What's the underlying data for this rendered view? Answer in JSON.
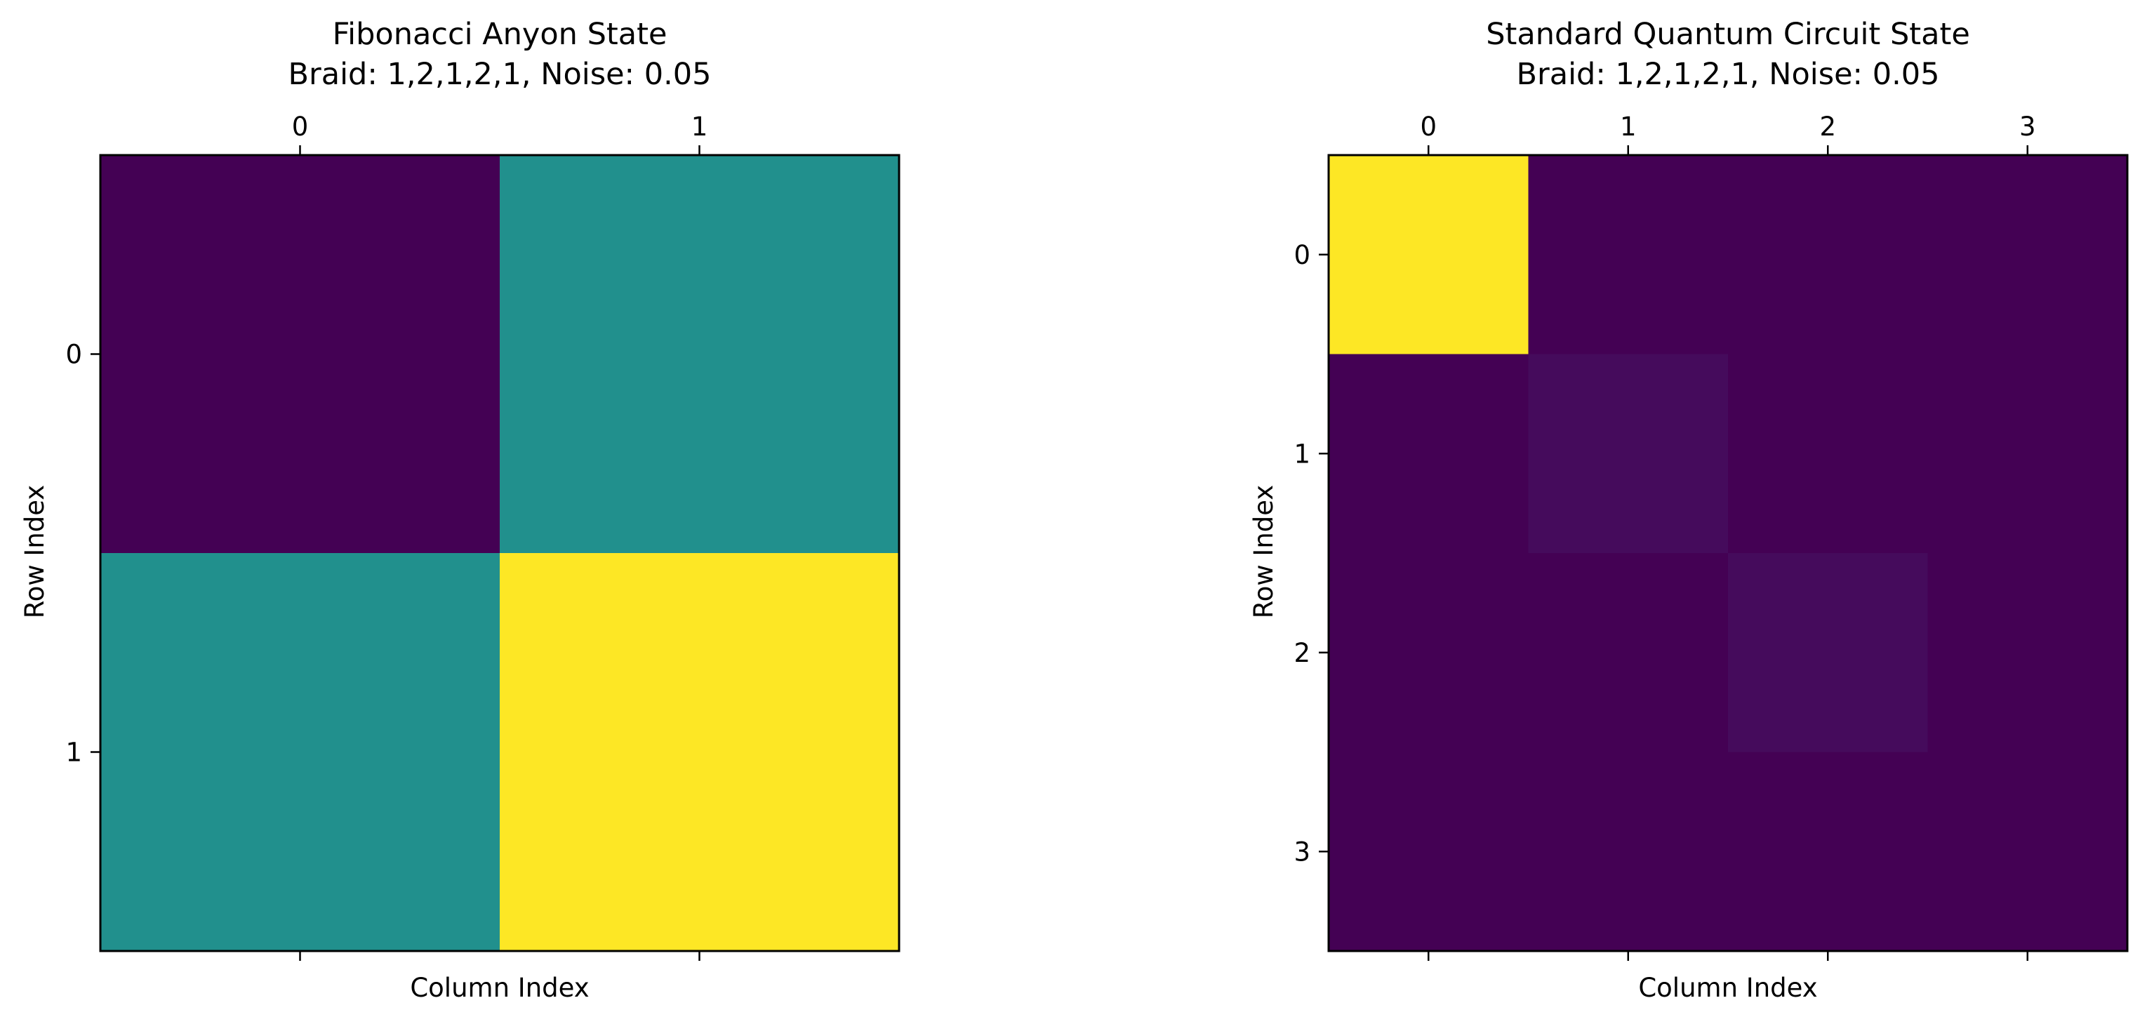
{
  "colormap": "viridis",
  "chart_data": [
    {
      "type": "heatmap",
      "title": "Fibonacci Anyon State",
      "subtitle": "Braid: 1,2,1,2,1, Noise: 0.05",
      "xlabel": "Column Index",
      "ylabel": "Row Index",
      "x_ticks": [
        "0",
        "1"
      ],
      "y_ticks": [
        "0",
        "1"
      ],
      "x_tick_position": "top",
      "grid": false,
      "legend": "none",
      "values": [
        [
          0.0,
          0.5
        ],
        [
          0.5,
          1.0
        ]
      ]
    },
    {
      "type": "heatmap",
      "title": "Standard Quantum Circuit State",
      "subtitle": "Braid: 1,2,1,2,1, Noise: 0.05",
      "xlabel": "Column Index",
      "ylabel": "Row Index",
      "x_ticks": [
        "0",
        "1",
        "2",
        "3"
      ],
      "y_ticks": [
        "0",
        "1",
        "2",
        "3"
      ],
      "x_tick_position": "top",
      "grid": false,
      "legend": "none",
      "values": [
        [
          0.9,
          0.0,
          0.0,
          0.0
        ],
        [
          0.0,
          0.025,
          0.0,
          0.0
        ],
        [
          0.0,
          0.0,
          0.025,
          0.0
        ],
        [
          0.0,
          0.0,
          0.0,
          0.0
        ]
      ]
    }
  ]
}
